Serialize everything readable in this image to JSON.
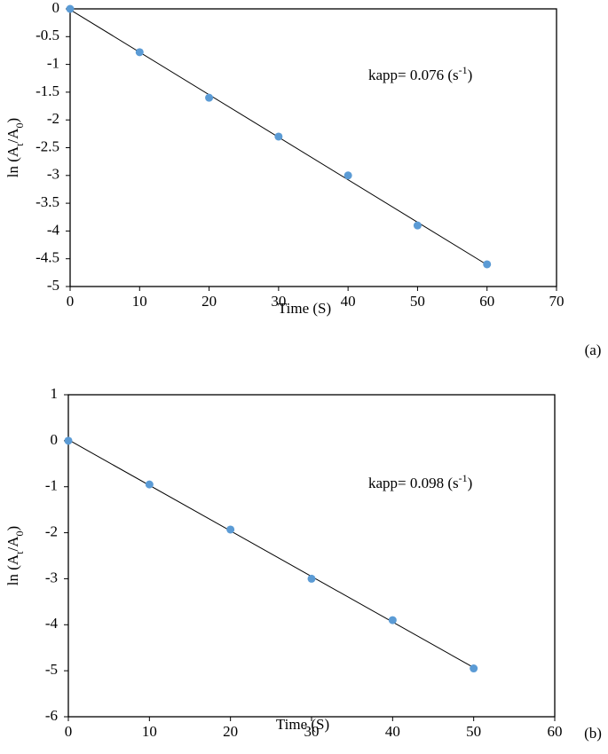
{
  "chart_data": [
    {
      "type": "scatter",
      "x": [
        0,
        10,
        20,
        30,
        40,
        50,
        60
      ],
      "values": [
        0,
        -0.78,
        -1.6,
        -2.3,
        -3,
        -3.9,
        -4.6
      ],
      "color": "#5b9bd5",
      "trendline": true,
      "trendline_color": "#000000",
      "xlim": [
        0,
        70
      ],
      "xticks": [
        0,
        10,
        20,
        30,
        40,
        50,
        60,
        70
      ],
      "ylim": [
        -5,
        0
      ],
      "yticks": [
        0,
        -0.5,
        -1,
        -1.5,
        -2,
        -2.5,
        -3,
        -3.5,
        -4,
        -4.5,
        -5
      ],
      "xlabel": "Time (S)",
      "ylabel": [
        "ln (A",
        "t",
        "/A",
        "0",
        ")"
      ],
      "annotation": [
        "kapp= 0.076 (s",
        "-1",
        ")"
      ],
      "panel_label": "(a)"
    },
    {
      "type": "scatter",
      "x": [
        0,
        10,
        20,
        30,
        40,
        50
      ],
      "values": [
        0,
        -0.95,
        -1.93,
        -3,
        -3.9,
        -4.95
      ],
      "color": "#5b9bd5",
      "trendline": true,
      "trendline_color": "#000000",
      "xlim": [
        0,
        60
      ],
      "xticks": [
        0,
        10,
        20,
        30,
        40,
        50,
        60
      ],
      "ylim": [
        -6,
        1
      ],
      "yticks": [
        1,
        0,
        -1,
        -2,
        -3,
        -4,
        -5,
        -6
      ],
      "xlabel": "Time (S)",
      "ylabel": [
        "ln (A",
        "t",
        "/A",
        "0",
        ")"
      ],
      "annotation": [
        "kapp= 0.098 (s",
        "-1",
        ")"
      ],
      "panel_label": "(b)"
    }
  ]
}
